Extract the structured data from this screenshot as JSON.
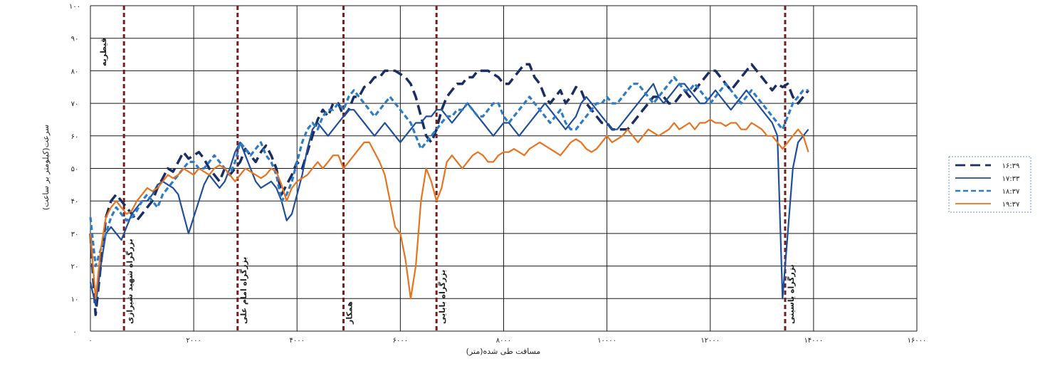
{
  "chart_data": {
    "type": "line",
    "title": "",
    "xlabel": "مسافت طی شده(متر)",
    "ylabel": "سرعت(کیلومتر بر ساعت)",
    "xlim": [
      0,
      16000
    ],
    "ylim": [
      0,
      100
    ],
    "x_ticks": [
      0,
      2000,
      4000,
      6000,
      8000,
      10000,
      12000,
      14000,
      16000
    ],
    "x_tick_labels": [
      "۰",
      "۲۰۰۰",
      "۴۰۰۰",
      "۶۰۰۰",
      "۸۰۰۰",
      "۱۰۰۰۰",
      "۱۲۰۰۰",
      "۱۴۰۰۰",
      "۱۶۰۰۰"
    ],
    "y_ticks": [
      0,
      10,
      20,
      30,
      40,
      50,
      60,
      70,
      80,
      90,
      100
    ],
    "y_tick_labels": [
      "۰",
      "۱۰",
      "۲۰",
      "۳۰",
      "۴۰",
      "۵۰",
      "۶۰",
      "۷۰",
      "۸۰",
      "۹۰",
      "۱۰۰"
    ],
    "grid": true,
    "legend_position": "right",
    "annotations": [
      {
        "x": 0,
        "label": "قیطریه",
        "color": "#7b1c1c"
      },
      {
        "x": 650,
        "label": "بزرگراه شهید شیرازی",
        "color": "#7b1c1c"
      },
      {
        "x": 2850,
        "label": "بزرگراه امام علی",
        "color": "#7b1c1c"
      },
      {
        "x": 4900,
        "label": "همکار",
        "color": "#7b1c1c"
      },
      {
        "x": 6700,
        "label": "بزرگراه بابایی",
        "color": "#7b1c1c"
      },
      {
        "x": 13450,
        "label": "بزرگراه یاسینی",
        "color": "#7b1c1c"
      }
    ],
    "series": [
      {
        "name": "۱۶:۳۹",
        "color": "#1b2e63",
        "style": "long-dash",
        "x": [
          0,
          100,
          200,
          300,
          400,
          500,
          600,
          700,
          800,
          900,
          1000,
          1100,
          1200,
          1300,
          1400,
          1500,
          1600,
          1700,
          1800,
          1900,
          2000,
          2100,
          2200,
          2300,
          2400,
          2500,
          2600,
          2700,
          2800,
          2900,
          3000,
          3100,
          3200,
          3300,
          3400,
          3500,
          3600,
          3700,
          3800,
          3900,
          4000,
          4100,
          4200,
          4300,
          4400,
          4500,
          4600,
          4700,
          4800,
          4900,
          5000,
          5100,
          5200,
          5300,
          5400,
          5500,
          5600,
          5700,
          5800,
          5900,
          6000,
          6100,
          6200,
          6300,
          6400,
          6500,
          6600,
          6700,
          6800,
          6900,
          7000,
          7100,
          7200,
          7300,
          7400,
          7500,
          7600,
          7700,
          7800,
          7900,
          8000,
          8100,
          8200,
          8300,
          8400,
          8500,
          8600,
          8700,
          8800,
          8900,
          9000,
          9100,
          9200,
          9300,
          9400,
          9500,
          9600,
          9700,
          9800,
          9900,
          10000,
          10100,
          10200,
          10300,
          10400,
          10500,
          10600,
          10700,
          10800,
          10900,
          11000,
          11100,
          11200,
          11300,
          11400,
          11500,
          11600,
          11700,
          11800,
          11900,
          12000,
          12100,
          12200,
          12300,
          12400,
          12500,
          12600,
          12700,
          12800,
          12900,
          13000,
          13100,
          13200,
          13300,
          13400,
          13500,
          13600,
          13700,
          13800,
          13900
        ],
        "y": [
          30,
          5,
          20,
          35,
          40,
          42,
          40,
          38,
          36,
          34,
          36,
          38,
          40,
          44,
          47,
          50,
          49,
          52,
          55,
          53,
          54,
          55,
          53,
          50,
          48,
          46,
          50,
          48,
          50,
          52,
          56,
          54,
          52,
          55,
          57,
          54,
          50,
          42,
          45,
          48,
          52,
          50,
          55,
          60,
          65,
          68,
          66,
          70,
          70,
          66,
          68,
          72,
          72,
          75,
          76,
          78,
          78,
          80,
          80,
          80,
          79,
          78,
          76,
          72,
          66,
          60,
          58,
          62,
          68,
          72,
          74,
          76,
          76,
          78,
          78,
          80,
          80,
          80,
          79,
          78,
          76,
          76,
          78,
          80,
          82,
          82,
          78,
          76,
          72,
          70,
          72,
          74,
          70,
          72,
          75,
          74,
          70,
          68,
          66,
          64,
          64,
          62,
          62,
          62,
          62,
          64,
          66,
          68,
          70,
          72,
          72,
          72,
          70,
          70,
          72,
          74,
          72,
          74,
          76,
          78,
          80,
          80,
          78,
          76,
          74,
          76,
          78,
          80,
          82,
          80,
          78,
          76,
          74,
          76,
          75,
          76,
          72,
          70,
          72,
          74
        ]
      },
      {
        "name": "۱۷:۳۳",
        "color": "#1f4e9b",
        "style": "solid",
        "x": [
          0,
          100,
          200,
          300,
          400,
          500,
          600,
          700,
          800,
          900,
          1000,
          1100,
          1200,
          1300,
          1400,
          1500,
          1600,
          1700,
          1800,
          1900,
          2000,
          2100,
          2200,
          2300,
          2400,
          2500,
          2600,
          2700,
          2800,
          2900,
          3000,
          3100,
          3200,
          3300,
          3400,
          3500,
          3600,
          3700,
          3800,
          3900,
          4000,
          4100,
          4200,
          4300,
          4400,
          4500,
          4600,
          4700,
          4800,
          4900,
          5000,
          5100,
          5200,
          5300,
          5400,
          5500,
          5600,
          5700,
          5800,
          5900,
          6000,
          6100,
          6200,
          6300,
          6400,
          6500,
          6600,
          6700,
          6800,
          6900,
          7000,
          7100,
          7200,
          7300,
          7400,
          7500,
          7600,
          7700,
          7800,
          7900,
          8000,
          8100,
          8200,
          8300,
          8400,
          8500,
          8600,
          8700,
          8800,
          8900,
          9000,
          9100,
          9200,
          9300,
          9400,
          9500,
          9600,
          9700,
          9800,
          9900,
          10000,
          10100,
          10200,
          10300,
          10400,
          10500,
          10600,
          10700,
          10800,
          10900,
          11000,
          11100,
          11200,
          11300,
          11400,
          11500,
          11600,
          11700,
          11800,
          11900,
          12000,
          12100,
          12200,
          12300,
          12400,
          12500,
          12600,
          12700,
          12800,
          12900,
          13000,
          13100,
          13200,
          13300,
          13400,
          13500,
          13600,
          13700,
          13800,
          13900
        ],
        "y": [
          15,
          8,
          20,
          30,
          32,
          30,
          28,
          32,
          36,
          38,
          40,
          40,
          42,
          45,
          46,
          45,
          44,
          42,
          36,
          30,
          35,
          40,
          45,
          48,
          46,
          44,
          46,
          50,
          55,
          58,
          54,
          50,
          46,
          44,
          45,
          46,
          44,
          40,
          34,
          36,
          42,
          48,
          56,
          62,
          64,
          62,
          60,
          62,
          64,
          66,
          68,
          68,
          66,
          64,
          62,
          60,
          62,
          64,
          62,
          60,
          58,
          60,
          62,
          64,
          64,
          66,
          66,
          68,
          68,
          66,
          64,
          66,
          68,
          70,
          68,
          66,
          64,
          62,
          60,
          62,
          64,
          64,
          62,
          60,
          62,
          64,
          66,
          68,
          70,
          68,
          66,
          64,
          62,
          64,
          66,
          70,
          72,
          70,
          68,
          66,
          64,
          62,
          62,
          64,
          66,
          68,
          70,
          72,
          74,
          76,
          72,
          70,
          72,
          74,
          76,
          76,
          74,
          72,
          70,
          70,
          72,
          74,
          72,
          70,
          68,
          70,
          72,
          74,
          72,
          70,
          68,
          66,
          64,
          60,
          10,
          30,
          50,
          58,
          60,
          62
        ]
      },
      {
        "name": "۱۸:۳۷",
        "color": "#2e7cc4",
        "style": "dash",
        "x": [
          0,
          100,
          200,
          300,
          400,
          500,
          600,
          700,
          800,
          900,
          1000,
          1100,
          1200,
          1300,
          1400,
          1500,
          1600,
          1700,
          1800,
          1900,
          2000,
          2100,
          2200,
          2300,
          2400,
          2500,
          2600,
          2700,
          2800,
          2900,
          3000,
          3100,
          3200,
          3300,
          3400,
          3500,
          3600,
          3700,
          3800,
          3900,
          4000,
          4100,
          4200,
          4300,
          4400,
          4500,
          4600,
          4700,
          4800,
          4900,
          5000,
          5100,
          5200,
          5300,
          5400,
          5500,
          5600,
          5700,
          5800,
          5900,
          6000,
          6100,
          6200,
          6300,
          6400,
          6500,
          6600,
          6700,
          6800,
          6900,
          7000,
          7100,
          7200,
          7300,
          7400,
          7500,
          7600,
          7700,
          7800,
          7900,
          8000,
          8100,
          8200,
          8300,
          8400,
          8500,
          8600,
          8700,
          8800,
          8900,
          9000,
          9100,
          9200,
          9300,
          9400,
          9500,
          9600,
          9700,
          9800,
          9900,
          10000,
          10100,
          10200,
          10300,
          10400,
          10500,
          10600,
          10700,
          10800,
          10900,
          11000,
          11100,
          11200,
          11300,
          11400,
          11500,
          11600,
          11700,
          11800,
          11900,
          12000,
          12100,
          12200,
          12300,
          12400,
          12500,
          12600,
          12700,
          12800,
          12900,
          13000,
          13100,
          13200,
          13300,
          13400,
          13500,
          13600,
          13700,
          13800,
          13900
        ],
        "y": [
          35,
          20,
          25,
          30,
          35,
          38,
          36,
          34,
          35,
          37,
          40,
          42,
          40,
          38,
          42,
          44,
          46,
          48,
          50,
          52,
          52,
          50,
          50,
          52,
          54,
          52,
          50,
          48,
          52,
          58,
          56,
          54,
          56,
          58,
          54,
          52,
          48,
          40,
          42,
          46,
          52,
          58,
          62,
          64,
          62,
          66,
          68,
          68,
          70,
          68,
          72,
          74,
          72,
          70,
          68,
          66,
          68,
          70,
          72,
          70,
          68,
          66,
          64,
          60,
          56,
          58,
          60,
          62,
          64,
          66,
          66,
          68,
          68,
          70,
          68,
          66,
          66,
          68,
          70,
          70,
          66,
          64,
          66,
          68,
          70,
          72,
          70,
          68,
          66,
          64,
          66,
          68,
          64,
          62,
          62,
          64,
          66,
          68,
          70,
          70,
          72,
          70,
          70,
          72,
          74,
          76,
          76,
          74,
          72,
          70,
          72,
          74,
          76,
          78,
          76,
          74,
          74,
          76,
          74,
          72,
          70,
          72,
          74,
          76,
          74,
          72,
          70,
          72,
          74,
          72,
          70,
          68,
          66,
          64,
          62,
          66,
          70,
          72,
          74,
          74
        ]
      },
      {
        "name": "۱۹:۳۷",
        "color": "#e8731e",
        "style": "solid",
        "x": [
          0,
          100,
          200,
          300,
          400,
          500,
          600,
          700,
          800,
          900,
          1000,
          1100,
          1200,
          1300,
          1400,
          1500,
          1600,
          1700,
          1800,
          1900,
          2000,
          2100,
          2200,
          2300,
          2400,
          2500,
          2600,
          2700,
          2800,
          2900,
          3000,
          3100,
          3200,
          3300,
          3400,
          3500,
          3600,
          3700,
          3800,
          3900,
          4000,
          4100,
          4200,
          4300,
          4400,
          4500,
          4600,
          4700,
          4800,
          4900,
          5000,
          5100,
          5200,
          5300,
          5400,
          5500,
          5600,
          5700,
          5800,
          5900,
          6000,
          6100,
          6200,
          6300,
          6400,
          6500,
          6600,
          6700,
          6800,
          6900,
          7000,
          7100,
          7200,
          7300,
          7400,
          7500,
          7600,
          7700,
          7800,
          7900,
          8000,
          8100,
          8200,
          8300,
          8400,
          8500,
          8600,
          8700,
          8800,
          8900,
          9000,
          9100,
          9200,
          9300,
          9400,
          9500,
          9600,
          9700,
          9800,
          9900,
          10000,
          10100,
          10200,
          10300,
          10400,
          10500,
          10600,
          10700,
          10800,
          10900,
          11000,
          11100,
          11200,
          11300,
          11400,
          11500,
          11600,
          11700,
          11800,
          11900,
          12000,
          12100,
          12200,
          12300,
          12400,
          12500,
          12600,
          12700,
          12800,
          12900,
          13000,
          13100,
          13200,
          13300,
          13400,
          13500,
          13600,
          13700,
          13800,
          13900
        ],
        "y": [
          30,
          10,
          25,
          35,
          38,
          40,
          38,
          36,
          37,
          40,
          42,
          44,
          43,
          44,
          46,
          48,
          47,
          48,
          50,
          49,
          48,
          50,
          49,
          48,
          50,
          51,
          50,
          48,
          46,
          48,
          50,
          49,
          48,
          47,
          48,
          50,
          49,
          45,
          40,
          44,
          46,
          47,
          48,
          50,
          52,
          50,
          52,
          54,
          54,
          50,
          52,
          54,
          56,
          58,
          58,
          55,
          52,
          48,
          40,
          32,
          30,
          22,
          10,
          20,
          40,
          50,
          46,
          40,
          44,
          52,
          54,
          52,
          50,
          52,
          54,
          55,
          54,
          52,
          52,
          54,
          55,
          55,
          56,
          55,
          54,
          56,
          57,
          58,
          57,
          56,
          55,
          54,
          56,
          58,
          59,
          58,
          56,
          55,
          56,
          58,
          60,
          58,
          59,
          60,
          62,
          60,
          58,
          60,
          62,
          61,
          60,
          61,
          62,
          64,
          62,
          63,
          64,
          62,
          64,
          64,
          65,
          64,
          64,
          63,
          64,
          64,
          62,
          62,
          64,
          63,
          62,
          60,
          60,
          58,
          56,
          58,
          60,
          62,
          60,
          55
        ]
      }
    ]
  }
}
